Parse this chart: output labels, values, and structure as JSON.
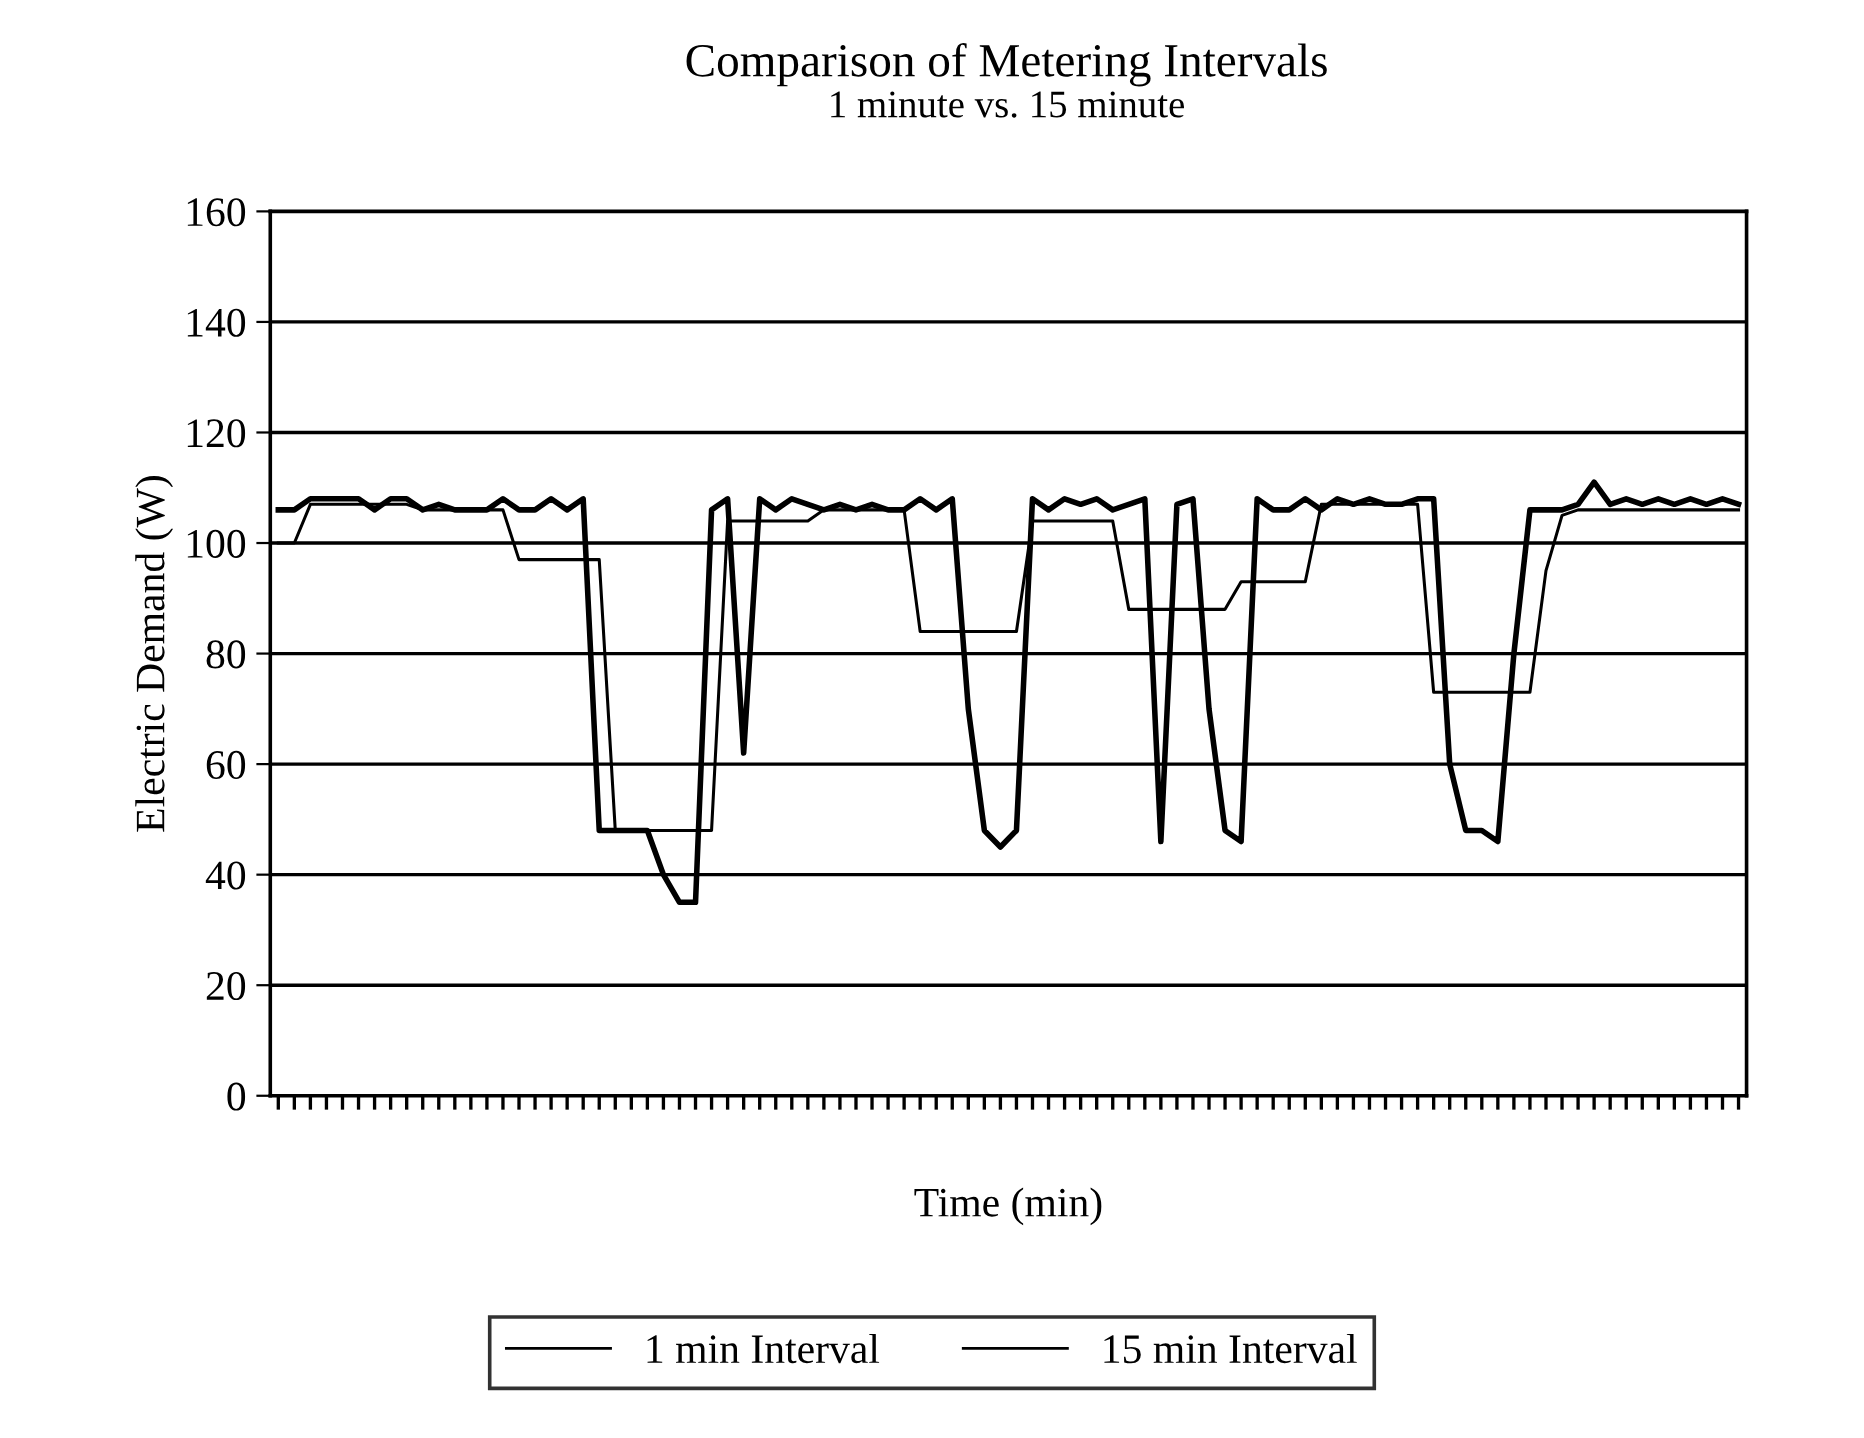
{
  "chart_data": {
    "type": "line",
    "title": "Comparison of Metering Intervals",
    "subtitle": "1 minute vs. 15 minute",
    "xlabel": "Time (min)",
    "ylabel": "Electric Demand (W)",
    "categories": [
      null,
      null,
      null,
      null,
      null,
      null,
      null,
      null,
      null,
      null,
      null,
      null,
      null,
      null,
      null,
      null,
      null,
      null,
      null,
      null,
      null,
      null,
      null,
      null,
      null,
      null,
      null,
      null,
      null,
      null,
      null,
      null,
      null,
      null,
      null,
      null,
      null,
      null,
      null,
      null,
      null,
      null,
      null,
      null,
      null,
      null,
      null,
      null,
      null,
      null,
      null,
      null,
      null,
      null,
      null,
      null,
      null,
      null,
      null,
      null,
      null,
      null,
      null,
      null,
      null,
      null,
      null,
      null,
      null,
      null,
      null,
      null,
      null,
      null,
      null,
      null,
      null,
      null,
      null,
      null,
      null,
      null,
      null,
      null,
      null,
      null,
      null,
      null,
      null,
      null,
      null,
      null
    ],
    "series": [
      {
        "name": "1 min Interval",
        "color": "#000000",
        "values": [
          106,
          106,
          108,
          108,
          108,
          108,
          106,
          108,
          108,
          106,
          107,
          106,
          106,
          106,
          108,
          106,
          106,
          108,
          106,
          108,
          48,
          48,
          48,
          48,
          40,
          35,
          35,
          106,
          108,
          62,
          108,
          106,
          108,
          107,
          106,
          107,
          106,
          107,
          106,
          106,
          108,
          106,
          108,
          70,
          48,
          45,
          48,
          108,
          106,
          108,
          107,
          108,
          106,
          107,
          108,
          46,
          107,
          108,
          70,
          48,
          46,
          108,
          106,
          106,
          108,
          106,
          108,
          107,
          108,
          107,
          107,
          108,
          108,
          60,
          48,
          48,
          46,
          80,
          106,
          106,
          106,
          107,
          111,
          107,
          108,
          107,
          108,
          107,
          108,
          107,
          108,
          107
        ]
      },
      {
        "name": "15 min Interval",
        "color": "#000000",
        "values": [
          100,
          100,
          107,
          107,
          107,
          107,
          107,
          107,
          107,
          106,
          106,
          106,
          106,
          106,
          106,
          97,
          97,
          97,
          97,
          97,
          97,
          48,
          48,
          48,
          48,
          48,
          48,
          48,
          104,
          104,
          104,
          104,
          104,
          104,
          106,
          106,
          106,
          106,
          106,
          106,
          84,
          84,
          84,
          84,
          84,
          84,
          84,
          104,
          104,
          104,
          104,
          104,
          104,
          88,
          88,
          88,
          88,
          88,
          88,
          88,
          93,
          93,
          93,
          93,
          93,
          107,
          107,
          107,
          107,
          107,
          107,
          107,
          73,
          73,
          73,
          73,
          73,
          73,
          73,
          95,
          105,
          106,
          106,
          106,
          106,
          106,
          106,
          106,
          106,
          106,
          106,
          106
        ]
      }
    ],
    "ylim": [
      0,
      160
    ],
    "yticks": [
      0,
      20,
      40,
      60,
      80,
      100,
      120,
      140,
      160
    ],
    "grid": "y",
    "legend": "bottom",
    "marker": "none",
    "line_style": "solid",
    "tick_labels": "y"
  }
}
